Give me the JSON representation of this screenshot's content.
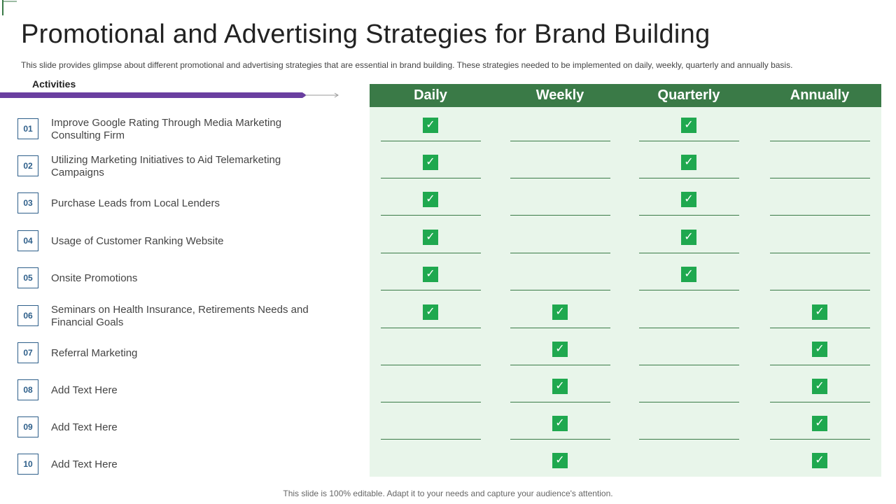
{
  "title": "Promotional and Advertising Strategies for Brand Building",
  "subtitle": "This slide provides glimpse about different promotional and advertising strategies that are essential in brand building. These strategies needed to be implemented on daily, weekly, quarterly and annually basis.",
  "activities_header": "Activities",
  "columns": [
    "Daily",
    "Weekly",
    "Quarterly",
    "Annually"
  ],
  "activities": [
    {
      "num": "01",
      "text": "Improve Google Rating Through Media Marketing Consulting Firm"
    },
    {
      "num": "02",
      "text": "Utilizing Marketing Initiatives to Aid Telemarketing Campaigns"
    },
    {
      "num": "03",
      "text": "Purchase Leads from Local Lenders"
    },
    {
      "num": "04",
      "text": "Usage of Customer Ranking Website"
    },
    {
      "num": "05",
      "text": "Onsite Promotions"
    },
    {
      "num": "06",
      "text": "Seminars on Health Insurance, Retirements Needs and Financial Goals"
    },
    {
      "num": "07",
      "text": "Referral Marketing"
    },
    {
      "num": "08",
      "text": "Add Text Here"
    },
    {
      "num": "09",
      "text": "Add Text Here"
    },
    {
      "num": "10",
      "text": "Add Text Here"
    }
  ],
  "matrix": [
    [
      true,
      false,
      true,
      false
    ],
    [
      true,
      false,
      true,
      false
    ],
    [
      true,
      false,
      true,
      false
    ],
    [
      true,
      false,
      true,
      false
    ],
    [
      true,
      false,
      true,
      false
    ],
    [
      true,
      true,
      false,
      true
    ],
    [
      false,
      true,
      false,
      true
    ],
    [
      false,
      true,
      false,
      true
    ],
    [
      false,
      true,
      false,
      true
    ],
    [
      false,
      true,
      false,
      true
    ]
  ],
  "check_glyph": "✓",
  "footer": "This slide is 100% editable. Adapt it to your needs and capture your audience's attention.",
  "colors": {
    "header_green": "#3a7a47",
    "table_bg": "#e8f5ea",
    "check_green": "#1fa84f",
    "accent_purple": "#6a3fa0",
    "number_blue": "#2e5f8a"
  }
}
